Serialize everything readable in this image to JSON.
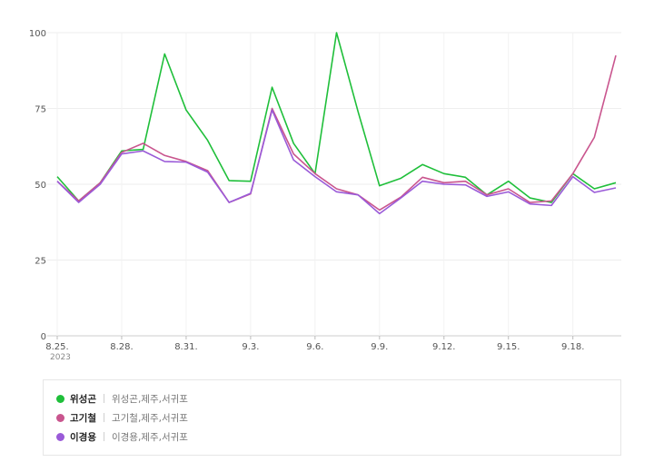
{
  "chart_data": {
    "type": "line",
    "title": "",
    "xlabel": "",
    "ylabel": "",
    "ylim": [
      0,
      100
    ],
    "yticks": [
      0,
      25,
      50,
      75,
      100
    ],
    "ytick_labels": [
      "0",
      "25",
      "50",
      "75",
      "100"
    ],
    "x": [
      "8.25.",
      "8.26.",
      "8.27.",
      "8.28.",
      "8.29.",
      "8.30.",
      "8.31.",
      "9.1.",
      "9.2.",
      "9.3.",
      "9.4.",
      "9.5.",
      "9.6.",
      "9.7.",
      "9.8.",
      "9.9.",
      "9.10.",
      "9.11.",
      "9.12.",
      "9.13.",
      "9.14.",
      "9.15.",
      "9.16.",
      "9.17.",
      "9.18.",
      "9.19.",
      "9.20."
    ],
    "xtick_labels": [
      {
        "index": 0,
        "label": "8.25."
      },
      {
        "index": 3,
        "label": "8.28."
      },
      {
        "index": 6,
        "label": "8.31."
      },
      {
        "index": 9,
        "label": "9.3."
      },
      {
        "index": 12,
        "label": "9.6."
      },
      {
        "index": 15,
        "label": "9.9."
      },
      {
        "index": 18,
        "label": "9.12."
      },
      {
        "index": 21,
        "label": "9.15."
      },
      {
        "index": 24,
        "label": "9.18."
      }
    ],
    "year_label": "2023",
    "grid": true,
    "legend_position": "bottom",
    "series": [
      {
        "name": "위성곤",
        "color": "#1fbf3a",
        "values": [
          52.5,
          44.5,
          50.5,
          61,
          61.5,
          93,
          74.5,
          64.5,
          51.2,
          51,
          82,
          63.5,
          53.5,
          100,
          74,
          49.5,
          52,
          56.5,
          53.5,
          52.3,
          46.5,
          51,
          45.5,
          44,
          53.5,
          48.5,
          50.5
        ]
      },
      {
        "name": "고기철",
        "color": "#c9558e",
        "values": [
          51,
          44.5,
          50.5,
          60.5,
          63.5,
          59.5,
          57.5,
          54.5,
          44,
          46.8,
          75,
          60,
          53.5,
          48.5,
          46.5,
          41.5,
          45.8,
          52.3,
          50.5,
          51,
          46.5,
          48.5,
          44,
          44.5,
          53.5,
          65.5,
          92.5
        ]
      },
      {
        "name": "이경용",
        "color": "#9a5ad8",
        "values": [
          51,
          44,
          50,
          60,
          61,
          57.5,
          57.3,
          54,
          44,
          47,
          74.5,
          58,
          52.5,
          47.5,
          46.5,
          40.3,
          45.5,
          51,
          50,
          49.8,
          46,
          47.5,
          43.5,
          43,
          52.5,
          47.3,
          48.8
        ]
      }
    ]
  },
  "legend": [
    {
      "name": "위성곤",
      "desc": "위성곤,제주,서귀포",
      "color": "#1fbf3a"
    },
    {
      "name": "고기철",
      "desc": "고기철,제주,서귀포",
      "color": "#c9558e"
    },
    {
      "name": "이경용",
      "desc": "이경용,제주,서귀포",
      "color": "#9a5ad8"
    }
  ]
}
